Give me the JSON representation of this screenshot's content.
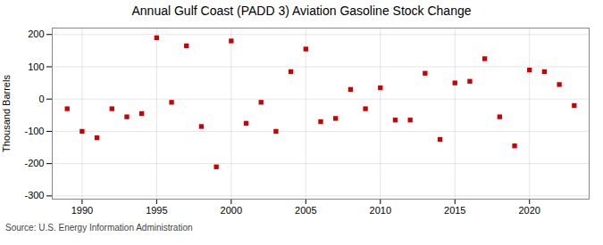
{
  "chart_data": {
    "type": "scatter",
    "title": "Annual Gulf Coast (PADD 3) Aviation Gasoline Stock Change",
    "ylabel": "Thousand Barrels",
    "source": "Source: U.S. Energy Information Administration",
    "x": [
      1989,
      1990,
      1991,
      1992,
      1993,
      1994,
      1995,
      1996,
      1997,
      1998,
      1999,
      2000,
      2001,
      2002,
      2003,
      2004,
      2005,
      2006,
      2007,
      2008,
      2009,
      2010,
      2011,
      2012,
      2013,
      2014,
      2015,
      2016,
      2017,
      2018,
      2019,
      2020,
      2021,
      2022,
      2023
    ],
    "values": [
      -30,
      -100,
      -120,
      -30,
      -55,
      -45,
      190,
      -10,
      165,
      -85,
      -210,
      180,
      -75,
      -10,
      -100,
      85,
      155,
      -70,
      -60,
      30,
      -30,
      35,
      -65,
      -65,
      80,
      -125,
      50,
      55,
      125,
      -55,
      -145,
      90,
      85,
      45,
      -20
    ],
    "color": "#cc0000",
    "marker": "square",
    "xlim": [
      1988,
      2024
    ],
    "xticks": [
      1990,
      1995,
      2000,
      2005,
      2010,
      2015,
      2020
    ],
    "ylim": [
      -310,
      220
    ],
    "yticks": [
      -300,
      -200,
      -100,
      0,
      100,
      200
    ],
    "grid": true
  }
}
